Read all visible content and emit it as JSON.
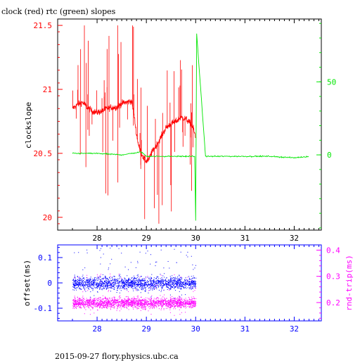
{
  "title": "clock (red) rtc (green) slopes",
  "footer": "2015-09-27 flory.physics.ubc.ca",
  "colors": {
    "red": "#ff0000",
    "green": "#00e600",
    "blue": "#0000ff",
    "magenta": "#ff00ff",
    "axis_top": "#000000",
    "axis_bottom": "#0000ff"
  },
  "chart_data": [
    {
      "type": "line",
      "ylabel": "clockslope",
      "x_ticks": [
        "28",
        "29",
        "30",
        "31",
        "32"
      ],
      "xlim": [
        27.2,
        32.55
      ],
      "ylim": [
        19.9,
        21.55
      ],
      "y_ticks_left": [
        "20",
        "20.5",
        "21",
        "21.5"
      ],
      "y_ticks_right": [
        "0",
        "50"
      ],
      "y_right_lim": [
        -51.5,
        93
      ],
      "grid": false,
      "series": [
        {
          "color": "red",
          "description": "clock slope (left axis)",
          "x": [
            27.5,
            27.6,
            27.7,
            27.8,
            27.9,
            28.0,
            28.1,
            28.2,
            28.3,
            28.4,
            28.5,
            28.6,
            28.7,
            28.75,
            28.8,
            28.85,
            28.9,
            28.95,
            29.0,
            29.05,
            29.1,
            29.2,
            29.3,
            29.4,
            29.5,
            29.6,
            29.7,
            29.8,
            29.9,
            29.95,
            30.0
          ],
          "y": [
            20.85,
            20.88,
            20.9,
            20.86,
            20.83,
            20.82,
            20.83,
            20.85,
            20.86,
            20.86,
            20.89,
            20.9,
            20.91,
            20.8,
            20.65,
            20.55,
            20.5,
            20.46,
            20.44,
            20.45,
            20.5,
            20.56,
            20.63,
            20.7,
            20.73,
            20.75,
            20.78,
            20.77,
            20.73,
            20.7,
            20.62
          ]
        },
        {
          "color": "green",
          "description": "rtc slope (right axis)",
          "x": [
            27.5,
            28.0,
            28.5,
            28.9,
            29.0,
            29.5,
            29.9,
            29.98,
            30.0,
            30.02,
            30.2,
            30.8,
            31.5,
            32.0,
            32.3
          ],
          "y": [
            1,
            1,
            0,
            2,
            -1,
            -1,
            -1,
            -1,
            -45,
            83,
            -1,
            -1,
            -1,
            -2,
            -1
          ]
        }
      ]
    },
    {
      "type": "scatter",
      "ylabel_left": "offset(ms)",
      "ylabel_right": "rnd-trip(ms)",
      "x_ticks": [
        "28",
        "29",
        "30",
        "31",
        "32"
      ],
      "xlim": [
        27.2,
        32.55
      ],
      "ylim": [
        -0.15,
        0.15
      ],
      "y_ticks_left": [
        "-0.1",
        "0",
        "0.1"
      ],
      "y_right_lim": [
        0.13,
        0.42
      ],
      "y_ticks_right": [
        "0.2",
        "0.3",
        "0.4"
      ],
      "series": [
        {
          "color": "blue",
          "description": "offset (left axis)",
          "x_range": [
            27.5,
            30.0
          ],
          "center": 0.0,
          "spread": 0.05
        },
        {
          "color": "magenta",
          "description": "round trip (right axis)",
          "x_range": [
            27.5,
            30.0
          ],
          "center": 0.2,
          "spread": 0.04
        }
      ]
    }
  ]
}
